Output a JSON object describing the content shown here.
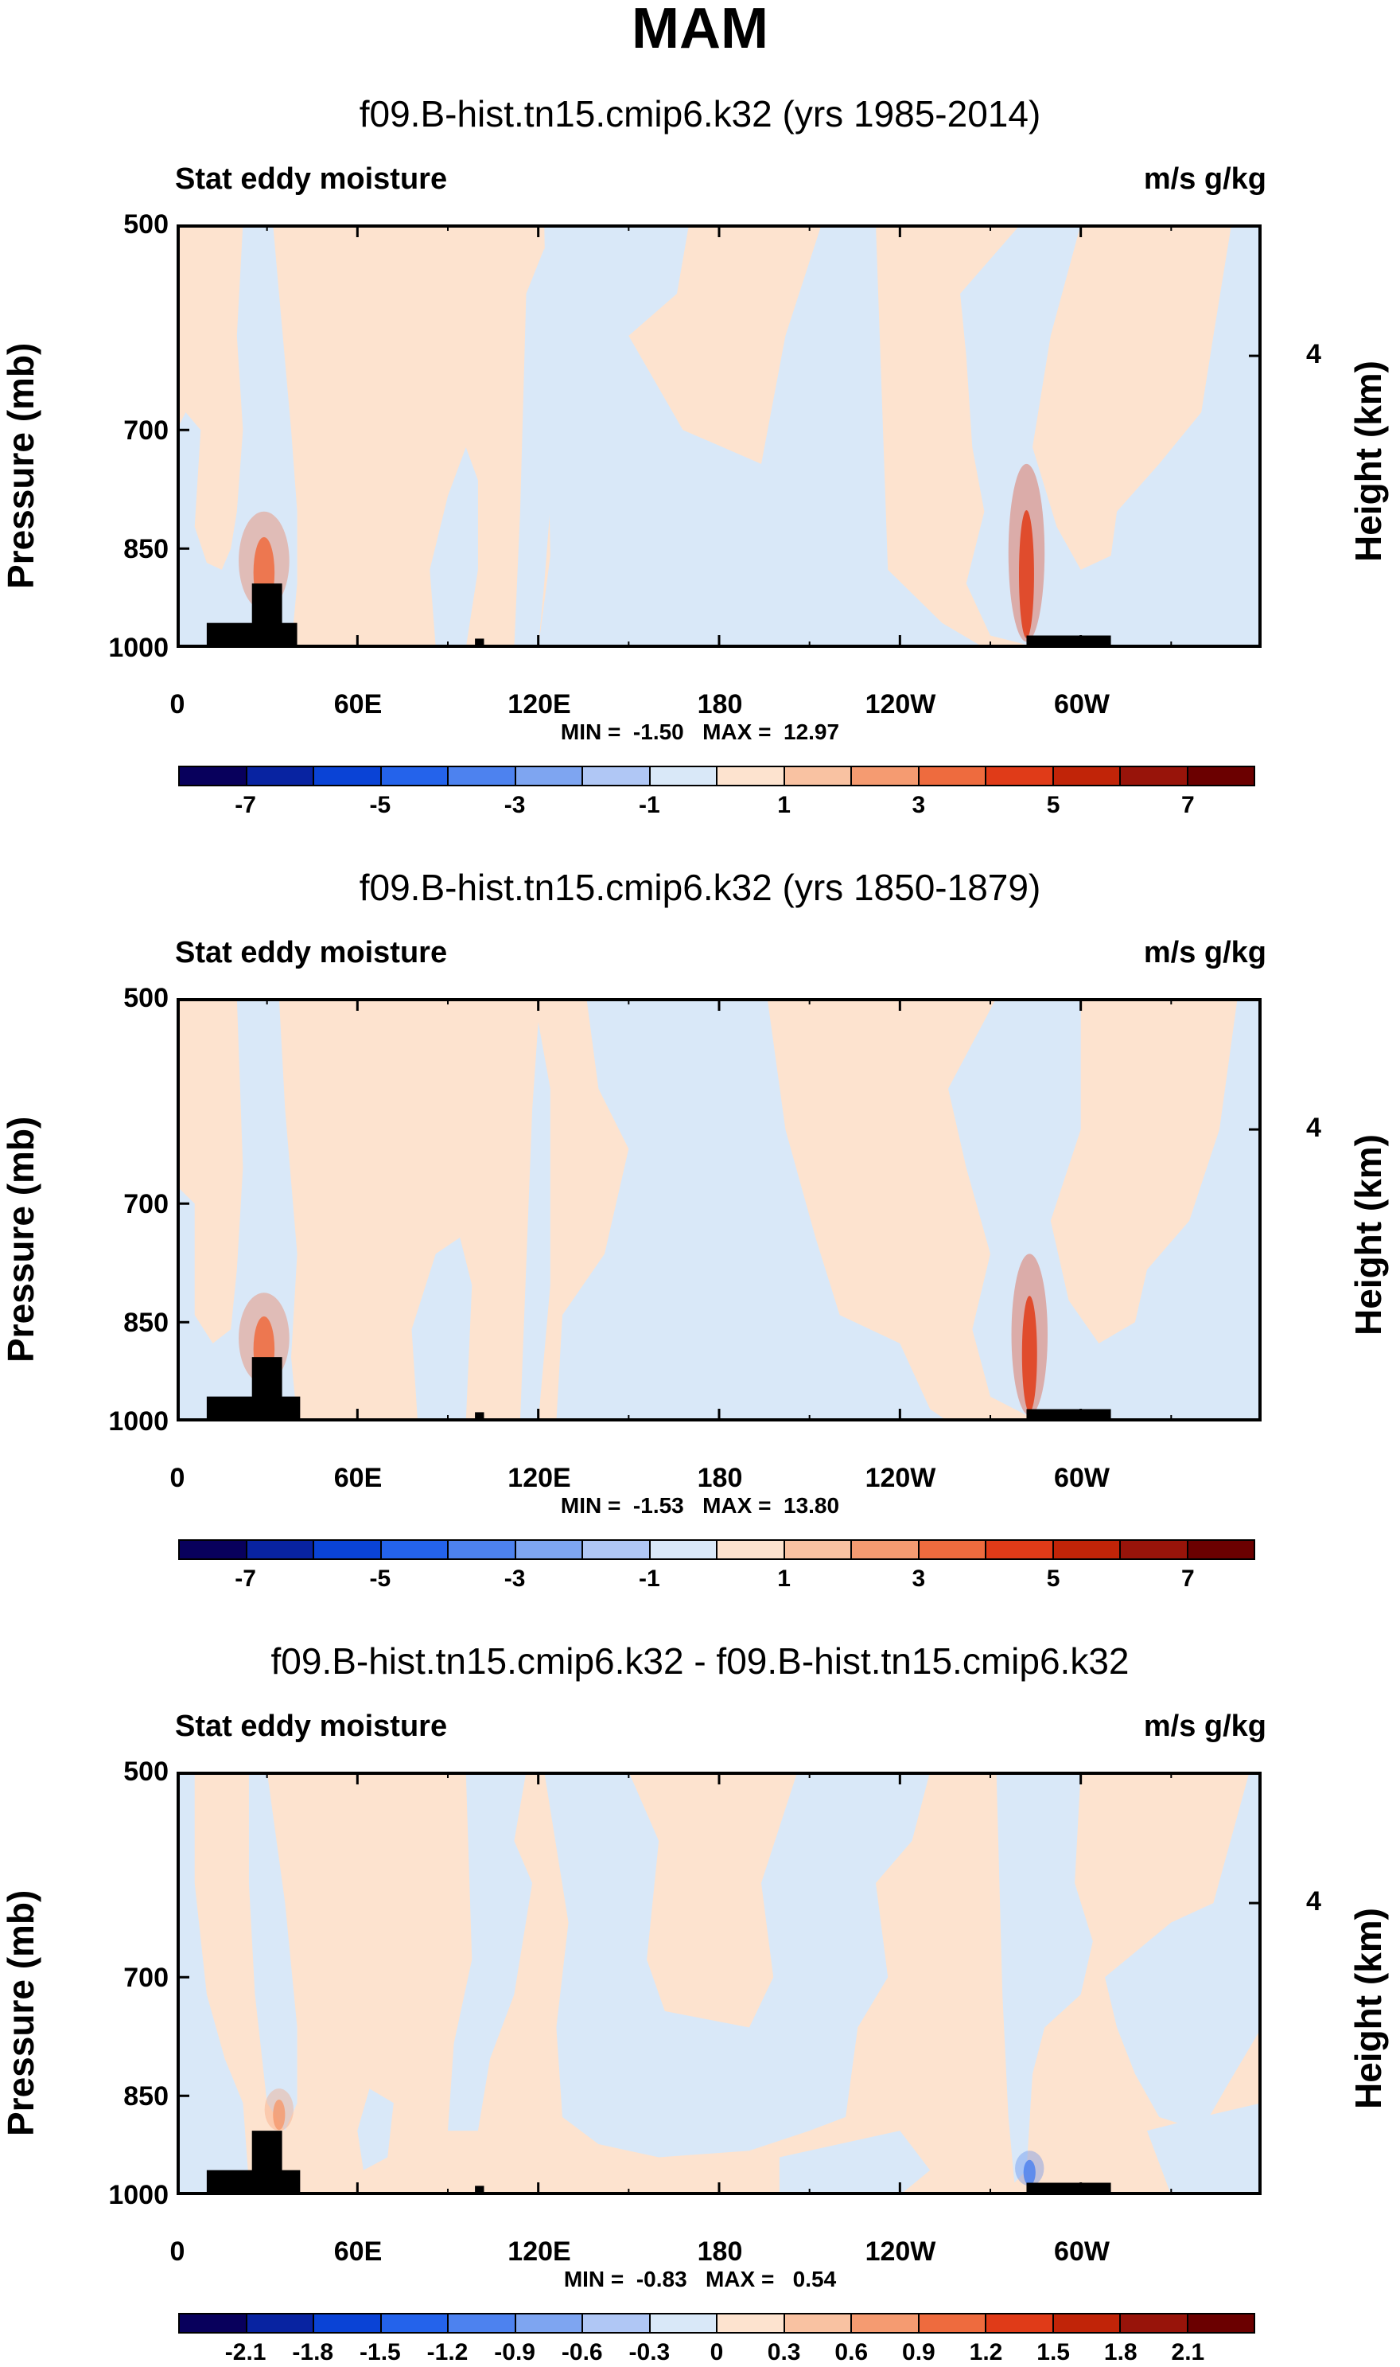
{
  "header": {
    "season": "MAM"
  },
  "colors": {
    "pos_fill": "#fde3cf",
    "neg_fill": "#d9e8f8",
    "land": "#000000",
    "scale": [
      "#08005c",
      "#0823a1",
      "#0a43d6",
      "#2463eb",
      "#4d82ef",
      "#7ea5f1",
      "#b0c7f5",
      "#d9e8f8",
      "#fde3cf",
      "#f9c2a2",
      "#f59b71",
      "#ee6b3e",
      "#e03b18",
      "#c12408",
      "#98140a",
      "#6b0000"
    ]
  },
  "chart_data": [
    {
      "type": "contour",
      "title": "f09.B-hist.tn15.cmip6.k32 (yrs 1985-2014)",
      "left_label": "Stat eddy moisture",
      "right_label": "m/s g/kg",
      "ylabel": "Pressure (mb)",
      "ylabel_right": "Height (km)",
      "y_ticks": [
        "500",
        "700",
        "850",
        "1000"
      ],
      "y_tick_values": [
        500,
        700,
        850,
        1000
      ],
      "height_tick": "4",
      "height_tick_value": 4,
      "x_ticks": [
        "0",
        "60E",
        "120E",
        "180",
        "120W",
        "60W"
      ],
      "x_tick_lon": [
        0,
        60,
        120,
        180,
        240,
        300
      ],
      "xlim": [
        0,
        360
      ],
      "ylim": [
        500,
        1000
      ],
      "min_max_text": "MIN =  -1.50   MAX =  12.97",
      "min": -1.5,
      "max": 12.97,
      "colorbar_labels": [
        "-7",
        "-5",
        "-3",
        "-1",
        "1",
        "3",
        "5",
        "7"
      ],
      "levels": [
        -7,
        -6,
        -5,
        -4,
        -3,
        -2,
        -1,
        0,
        1,
        2,
        3,
        4,
        5,
        6,
        7
      ],
      "neg_regions": [
        [
          [
            0,
            700
          ],
          [
            3,
            680
          ],
          [
            8,
            700
          ],
          [
            6,
            820
          ],
          [
            10,
            870
          ],
          [
            15,
            880
          ],
          [
            18,
            850
          ],
          [
            20,
            800
          ],
          [
            22,
            700
          ],
          [
            20,
            600
          ],
          [
            22,
            500
          ],
          [
            32,
            500
          ],
          [
            34,
            560
          ],
          [
            38,
            700
          ],
          [
            40,
            800
          ],
          [
            40,
            900
          ],
          [
            38,
            1000
          ],
          [
            0,
            1000
          ]
        ],
        [
          [
            84,
            880
          ],
          [
            90,
            780
          ],
          [
            96,
            720
          ],
          [
            100,
            760
          ],
          [
            100,
            880
          ],
          [
            96,
            1000
          ],
          [
            86,
            1000
          ]
        ],
        [
          [
            116,
            560
          ],
          [
            122,
            520
          ],
          [
            128,
            580
          ],
          [
            126,
            700
          ],
          [
            122,
            900
          ],
          [
            120,
            1000
          ],
          [
            112,
            1000
          ],
          [
            114,
            800
          ]
        ],
        [
          [
            122,
            500
          ],
          [
            170,
            500
          ],
          [
            166,
            560
          ],
          [
            150,
            600
          ],
          [
            168,
            700
          ],
          [
            194,
            740
          ],
          [
            202,
            600
          ],
          [
            214,
            500
          ],
          [
            232,
            500
          ],
          [
            236,
            880
          ],
          [
            254,
            960
          ],
          [
            268,
            1000
          ],
          [
            120,
            1000
          ],
          [
            124,
            860
          ]
        ],
        [
          [
            260,
            560
          ],
          [
            280,
            500
          ],
          [
            300,
            500
          ],
          [
            290,
            600
          ],
          [
            284,
            720
          ],
          [
            292,
            820
          ],
          [
            300,
            880
          ],
          [
            310,
            860
          ],
          [
            312,
            800
          ],
          [
            326,
            740
          ],
          [
            340,
            680
          ],
          [
            344,
            600
          ],
          [
            350,
            500
          ],
          [
            360,
            500
          ],
          [
            360,
            1000
          ],
          [
            300,
            1000
          ],
          [
            286,
            1000
          ],
          [
            270,
            980
          ],
          [
            262,
            900
          ],
          [
            268,
            800
          ],
          [
            264,
            720
          ],
          [
            262,
            620
          ]
        ]
      ],
      "hot_spots": [
        {
          "lon": 29,
          "p_top": 800,
          "p_bottom": 940,
          "width": 7,
          "color": "#ee6b3e"
        },
        {
          "lon": 282,
          "p_top": 740,
          "p_bottom": 990,
          "width": 5,
          "color": "#e03b18"
        }
      ],
      "land": [
        {
          "lon0": 10,
          "lon1": 40,
          "p_top": 960
        },
        {
          "lon0": 25,
          "lon1": 35,
          "p_top": 900
        },
        {
          "lon0": 99,
          "lon1": 102,
          "p_top": 985
        },
        {
          "lon0": 282,
          "lon1": 310,
          "p_top": 980
        }
      ]
    },
    {
      "type": "contour",
      "title": "f09.B-hist.tn15.cmip6.k32 (yrs 1850-1879)",
      "left_label": "Stat eddy moisture",
      "right_label": "m/s g/kg",
      "ylabel": "Pressure (mb)",
      "ylabel_right": "Height (km)",
      "y_ticks": [
        "500",
        "700",
        "850",
        "1000"
      ],
      "y_tick_values": [
        500,
        700,
        850,
        1000
      ],
      "height_tick": "4",
      "height_tick_value": 4,
      "x_ticks": [
        "0",
        "60E",
        "120E",
        "180",
        "120W",
        "60W"
      ],
      "x_tick_lon": [
        0,
        60,
        120,
        180,
        240,
        300
      ],
      "xlim": [
        0,
        360
      ],
      "ylim": [
        500,
        1000
      ],
      "min_max_text": "MIN =  -1.53   MAX =  13.80",
      "min": -1.53,
      "max": 13.8,
      "colorbar_labels": [
        "-7",
        "-5",
        "-3",
        "-1",
        "1",
        "3",
        "5",
        "7"
      ],
      "levels": [
        -7,
        -6,
        -5,
        -4,
        -3,
        -2,
        -1,
        0,
        1,
        2,
        3,
        4,
        5,
        6,
        7
      ],
      "neg_regions": [
        [
          [
            0,
            680
          ],
          [
            6,
            700
          ],
          [
            6,
            840
          ],
          [
            12,
            880
          ],
          [
            18,
            860
          ],
          [
            20,
            780
          ],
          [
            22,
            660
          ],
          [
            20,
            500
          ],
          [
            34,
            500
          ],
          [
            36,
            600
          ],
          [
            40,
            760
          ],
          [
            38,
            900
          ],
          [
            40,
            1000
          ],
          [
            0,
            1000
          ]
        ],
        [
          [
            78,
            860
          ],
          [
            86,
            760
          ],
          [
            94,
            740
          ],
          [
            98,
            800
          ],
          [
            96,
            1000
          ],
          [
            80,
            1000
          ]
        ],
        [
          [
            118,
            600
          ],
          [
            120,
            520
          ],
          [
            124,
            580
          ],
          [
            124,
            800
          ],
          [
            120,
            1000
          ],
          [
            114,
            1000
          ]
        ],
        [
          [
            136,
            500
          ],
          [
            196,
            500
          ],
          [
            202,
            620
          ],
          [
            212,
            740
          ],
          [
            220,
            840
          ],
          [
            240,
            880
          ],
          [
            250,
            980
          ],
          [
            256,
            1000
          ],
          [
            126,
            1000
          ],
          [
            128,
            840
          ],
          [
            142,
            760
          ],
          [
            150,
            640
          ],
          [
            140,
            580
          ]
        ],
        [
          [
            256,
            580
          ],
          [
            272,
            500
          ],
          [
            300,
            500
          ],
          [
            300,
            620
          ],
          [
            290,
            720
          ],
          [
            296,
            820
          ],
          [
            306,
            880
          ],
          [
            318,
            850
          ],
          [
            322,
            780
          ],
          [
            336,
            720
          ],
          [
            346,
            620
          ],
          [
            352,
            500
          ],
          [
            360,
            500
          ],
          [
            360,
            1000
          ],
          [
            310,
            1000
          ],
          [
            286,
            1000
          ],
          [
            270,
            960
          ],
          [
            264,
            860
          ],
          [
            270,
            760
          ],
          [
            262,
            660
          ]
        ]
      ],
      "hot_spots": [
        {
          "lon": 29,
          "p_top": 810,
          "p_bottom": 940,
          "width": 7,
          "color": "#ee6b3e"
        },
        {
          "lon": 283,
          "p_top": 760,
          "p_bottom": 990,
          "width": 5,
          "color": "#e03b18"
        }
      ],
      "land": [
        {
          "lon0": 10,
          "lon1": 41,
          "p_top": 960
        },
        {
          "lon0": 25,
          "lon1": 35,
          "p_top": 900
        },
        {
          "lon0": 99,
          "lon1": 102,
          "p_top": 985
        },
        {
          "lon0": 282,
          "lon1": 310,
          "p_top": 980
        }
      ]
    },
    {
      "type": "contour",
      "title": "f09.B-hist.tn15.cmip6.k32 - f09.B-hist.tn15.cmip6.k32",
      "left_label": "Stat eddy moisture",
      "right_label": "m/s g/kg",
      "ylabel": "Pressure (mb)",
      "ylabel_right": "Height (km)",
      "y_ticks": [
        "500",
        "700",
        "850",
        "1000"
      ],
      "y_tick_values": [
        500,
        700,
        850,
        1000
      ],
      "height_tick": "4",
      "height_tick_value": 4,
      "x_ticks": [
        "0",
        "60E",
        "120E",
        "180",
        "120W",
        "60W"
      ],
      "x_tick_lon": [
        0,
        60,
        120,
        180,
        240,
        300
      ],
      "xlim": [
        0,
        360
      ],
      "ylim": [
        500,
        1000
      ],
      "min_max_text": "MIN =  -0.83   MAX =   0.54",
      "min": -0.83,
      "max": 0.54,
      "colorbar_labels": [
        "-2.1",
        "-1.8",
        "-1.5",
        "-1.2",
        "-0.9",
        "-0.6",
        "-0.3",
        "0",
        "0.3",
        "0.6",
        "0.9",
        "1.2",
        "1.5",
        "1.8",
        "2.1"
      ],
      "levels": [
        -2.1,
        -1.8,
        -1.5,
        -1.2,
        -0.9,
        -0.6,
        -0.3,
        0,
        0.3,
        0.6,
        0.9,
        1.2,
        1.5,
        1.8,
        2.1
      ],
      "neg_regions": [
        [
          [
            0,
            500
          ],
          [
            6,
            500
          ],
          [
            6,
            600
          ],
          [
            10,
            720
          ],
          [
            16,
            800
          ],
          [
            22,
            860
          ],
          [
            24,
            980
          ],
          [
            18,
            1000
          ],
          [
            0,
            1000
          ]
        ],
        [
          [
            24,
            500
          ],
          [
            30,
            500
          ],
          [
            36,
            620
          ],
          [
            40,
            760
          ],
          [
            40,
            860
          ],
          [
            36,
            900
          ],
          [
            30,
            860
          ],
          [
            26,
            720
          ],
          [
            24,
            600
          ]
        ],
        [
          [
            60,
            900
          ],
          [
            64,
            840
          ],
          [
            72,
            860
          ],
          [
            70,
            940
          ],
          [
            62,
            960
          ]
        ],
        [
          [
            96,
            500
          ],
          [
            116,
            500
          ],
          [
            112,
            560
          ],
          [
            118,
            600
          ],
          [
            112,
            720
          ],
          [
            104,
            800
          ],
          [
            100,
            900
          ],
          [
            90,
            900
          ],
          [
            92,
            780
          ],
          [
            98,
            680
          ]
        ],
        [
          [
            122,
            500
          ],
          [
            150,
            500
          ],
          [
            160,
            560
          ],
          [
            156,
            680
          ],
          [
            162,
            740
          ],
          [
            190,
            760
          ],
          [
            198,
            700
          ],
          [
            194,
            600
          ],
          [
            206,
            500
          ],
          [
            250,
            500
          ],
          [
            244,
            560
          ],
          [
            232,
            600
          ],
          [
            236,
            700
          ],
          [
            226,
            760
          ],
          [
            222,
            880
          ],
          [
            210,
            900
          ],
          [
            190,
            930
          ],
          [
            160,
            940
          ],
          [
            140,
            920
          ],
          [
            128,
            880
          ],
          [
            126,
            760
          ],
          [
            130,
            640
          ]
        ],
        [
          [
            200,
            940
          ],
          [
            240,
            900
          ],
          [
            250,
            960
          ],
          [
            240,
            1000
          ],
          [
            200,
            1000
          ]
        ],
        [
          [
            272,
            500
          ],
          [
            300,
            500
          ],
          [
            298,
            600
          ],
          [
            304,
            660
          ],
          [
            300,
            720
          ],
          [
            288,
            760
          ],
          [
            284,
            820
          ],
          [
            282,
            960
          ],
          [
            278,
            980
          ],
          [
            276,
            880
          ],
          [
            274,
            720
          ]
        ],
        [
          [
            308,
            700
          ],
          [
            330,
            640
          ],
          [
            344,
            620
          ],
          [
            356,
            500
          ],
          [
            360,
            500
          ],
          [
            360,
            760
          ],
          [
            348,
            840
          ],
          [
            340,
            900
          ],
          [
            326,
            880
          ],
          [
            318,
            820
          ],
          [
            312,
            760
          ]
        ],
        [
          [
            322,
            900
          ],
          [
            340,
            880
          ],
          [
            360,
            860
          ],
          [
            360,
            1000
          ],
          [
            330,
            1000
          ]
        ]
      ],
      "hot_spots": [
        {
          "lon": 34,
          "p_top": 840,
          "p_bottom": 900,
          "width": 4,
          "color": "#f59b71"
        },
        {
          "lon": 283,
          "p_top": 930,
          "p_bottom": 985,
          "width": 4,
          "color": "#4d82ef"
        }
      ],
      "land": [
        {
          "lon0": 10,
          "lon1": 41,
          "p_top": 960
        },
        {
          "lon0": 25,
          "lon1": 35,
          "p_top": 900
        },
        {
          "lon0": 99,
          "lon1": 102,
          "p_top": 985
        },
        {
          "lon0": 282,
          "lon1": 310,
          "p_top": 980
        }
      ]
    }
  ]
}
